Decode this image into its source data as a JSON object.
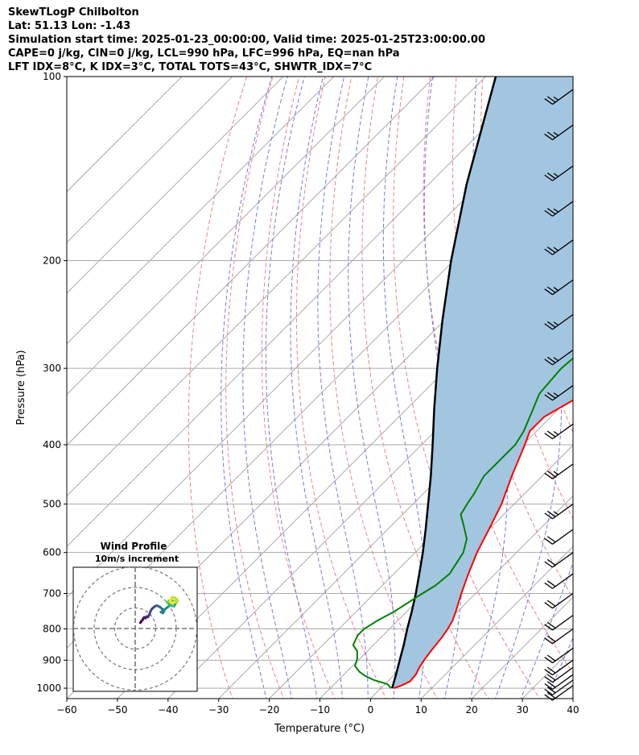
{
  "header": {
    "title": "SkewTLogP Chilbolton",
    "location": "Lat: 51.13   Lon: -1.43",
    "times": "Simulation start time: 2025-01-23_00:00:00, Valid time: 2025-01-25T23:00:00.00",
    "indices1": "CAPE=0 j/kg, CIN=0 j/kg, LCL=990 hPa, LFC=996 hPa, EQ=nan hPa",
    "indices2": "LFT IDX=8°C, K IDX=3°C, TOTAL TOTS=43°C, SHWTR_IDX=7°C"
  },
  "chart_data": {
    "type": "skewt",
    "xlabel": "Temperature (°C)",
    "ylabel": "Pressure (hPa)",
    "xlim": [
      -60,
      40
    ],
    "ylim": [
      1040,
      100
    ],
    "y_scale": "log",
    "x_ticks": [
      "−60",
      "−50",
      "−40",
      "−30",
      "−20",
      "−10",
      "0",
      "10",
      "20",
      "30",
      "40"
    ],
    "y_ticks": [
      "100",
      "200",
      "300",
      "400",
      "500",
      "600",
      "700",
      "800",
      "900",
      "1000"
    ],
    "grid": true,
    "colors": {
      "temperature": "#ff0000",
      "dewpoint": "#008000",
      "parcel": "#000000",
      "cape_fill": "#a3c6e0",
      "dry_adiabats": "#f08080",
      "moist_adiabats": "#6b7bef",
      "isotherms": "#aaaaaa"
    },
    "temperature": [
      {
        "p": 1000,
        "t": 2.5
      },
      {
        "p": 990,
        "t": 3.5
      },
      {
        "p": 975,
        "t": 4.4
      },
      {
        "p": 950,
        "t": 4.2
      },
      {
        "p": 925,
        "t": 3.5
      },
      {
        "p": 900,
        "t": 3.0
      },
      {
        "p": 875,
        "t": 2.6
      },
      {
        "p": 850,
        "t": 2.3
      },
      {
        "p": 825,
        "t": 2.0
      },
      {
        "p": 800,
        "t": 1.5
      },
      {
        "p": 775,
        "t": 0.8
      },
      {
        "p": 750,
        "t": -0.3
      },
      {
        "p": 700,
        "t": -2.8
      },
      {
        "p": 650,
        "t": -5.3
      },
      {
        "p": 600,
        "t": -7.8
      },
      {
        "p": 550,
        "t": -10.0
      },
      {
        "p": 500,
        "t": -12.5
      },
      {
        "p": 450,
        "t": -16.0
      },
      {
        "p": 400,
        "t": -19.6
      },
      {
        "p": 380,
        "t": -21.3
      },
      {
        "p": 360,
        "t": -21.3
      },
      {
        "p": 335,
        "t": -18.5
      },
      {
        "p": 300,
        "t": -17.7
      },
      {
        "p": 285,
        "t": -16.0
      },
      {
        "p": 265,
        "t": -12.5
      },
      {
        "p": 250,
        "t": -9.5
      },
      {
        "p": 235,
        "t": -6.5
      },
      {
        "p": 220,
        "t": -5.0
      },
      {
        "p": 200,
        "t": -2.8
      },
      {
        "p": 185,
        "t": 0.0
      },
      {
        "p": 170,
        "t": 2.5
      },
      {
        "p": 160,
        "t": 4.0
      },
      {
        "p": 140,
        "t": 7.0
      },
      {
        "p": 125,
        "t": 9.5
      },
      {
        "p": 115,
        "t": 12.0
      },
      {
        "p": 100,
        "t": 17.5
      }
    ],
    "dewpoint": [
      {
        "p": 1000,
        "t": 2.0
      },
      {
        "p": 985,
        "t": 0.5
      },
      {
        "p": 970,
        "t": -3.0
      },
      {
        "p": 955,
        "t": -5.5
      },
      {
        "p": 940,
        "t": -7.5
      },
      {
        "p": 920,
        "t": -9.5
      },
      {
        "p": 895,
        "t": -10.5
      },
      {
        "p": 870,
        "t": -12.0
      },
      {
        "p": 850,
        "t": -14.0
      },
      {
        "p": 820,
        "t": -15.0
      },
      {
        "p": 800,
        "t": -15.0
      },
      {
        "p": 775,
        "t": -14.0
      },
      {
        "p": 750,
        "t": -12.5
      },
      {
        "p": 700,
        "t": -10.5
      },
      {
        "p": 680,
        "t": -9.5
      },
      {
        "p": 650,
        "t": -9.0
      },
      {
        "p": 600,
        "t": -10.5
      },
      {
        "p": 570,
        "t": -12.5
      },
      {
        "p": 540,
        "t": -16.0
      },
      {
        "p": 520,
        "t": -18.5
      },
      {
        "p": 495,
        "t": -19.5
      },
      {
        "p": 480,
        "t": -20.0
      },
      {
        "p": 450,
        "t": -21.5
      },
      {
        "p": 400,
        "t": -21.5
      },
      {
        "p": 380,
        "t": -22.5
      },
      {
        "p": 350,
        "t": -25.0
      },
      {
        "p": 330,
        "t": -26.8
      },
      {
        "p": 300,
        "t": -27.5
      },
      {
        "p": 285,
        "t": -27.0
      },
      {
        "p": 260,
        "t": -27.5
      },
      {
        "p": 240,
        "t": -28.5
      },
      {
        "p": 220,
        "t": -29.5
      },
      {
        "p": 200,
        "t": -30.5
      },
      {
        "p": 185,
        "t": -30.0
      },
      {
        "p": 170,
        "t": -28.5
      },
      {
        "p": 160,
        "t": -27.0
      },
      {
        "p": 140,
        "t": -23.5
      },
      {
        "p": 120,
        "t": -19.0
      },
      {
        "p": 110,
        "t": -16.0
      },
      {
        "p": 100,
        "t": -13.0
      }
    ],
    "parcel": [
      {
        "p": 1000,
        "t": 2.2
      },
      {
        "p": 950,
        "t": 0.3
      },
      {
        "p": 900,
        "t": -1.8
      },
      {
        "p": 850,
        "t": -4.0
      },
      {
        "p": 800,
        "t": -6.5
      },
      {
        "p": 750,
        "t": -9.0
      },
      {
        "p": 700,
        "t": -11.8
      },
      {
        "p": 650,
        "t": -15.0
      },
      {
        "p": 600,
        "t": -18.5
      },
      {
        "p": 550,
        "t": -22.5
      },
      {
        "p": 500,
        "t": -27.0
      },
      {
        "p": 450,
        "t": -32.0
      },
      {
        "p": 400,
        "t": -37.8
      },
      {
        "p": 350,
        "t": -44.5
      },
      {
        "p": 300,
        "t": -52.0
      },
      {
        "p": 250,
        "t": -60.5
      },
      {
        "p": 200,
        "t": -70.5
      },
      {
        "p": 150,
        "t": -82.5
      },
      {
        "p": 100,
        "t": -98.0
      }
    ],
    "wind_barbs": [
      {
        "p": 990,
        "speed_kt": 20,
        "dir_deg": 240
      },
      {
        "p": 970,
        "speed_kt": 20,
        "dir_deg": 240
      },
      {
        "p": 950,
        "speed_kt": 20,
        "dir_deg": 240
      },
      {
        "p": 925,
        "speed_kt": 20,
        "dir_deg": 240
      },
      {
        "p": 900,
        "speed_kt": 20,
        "dir_deg": 240
      },
      {
        "p": 860,
        "speed_kt": 20,
        "dir_deg": 240
      },
      {
        "p": 800,
        "speed_kt": 20,
        "dir_deg": 240
      },
      {
        "p": 760,
        "speed_kt": 20,
        "dir_deg": 240
      },
      {
        "p": 700,
        "speed_kt": 20,
        "dir_deg": 240
      },
      {
        "p": 650,
        "speed_kt": 20,
        "dir_deg": 240
      },
      {
        "p": 600,
        "speed_kt": 20,
        "dir_deg": 240
      },
      {
        "p": 550,
        "speed_kt": 20,
        "dir_deg": 240
      },
      {
        "p": 500,
        "speed_kt": 25,
        "dir_deg": 240
      },
      {
        "p": 430,
        "speed_kt": 25,
        "dir_deg": 240
      },
      {
        "p": 370,
        "speed_kt": 25,
        "dir_deg": 240
      },
      {
        "p": 320,
        "speed_kt": 25,
        "dir_deg": 240
      },
      {
        "p": 280,
        "speed_kt": 25,
        "dir_deg": 240
      },
      {
        "p": 245,
        "speed_kt": 25,
        "dir_deg": 240
      },
      {
        "p": 215,
        "speed_kt": 25,
        "dir_deg": 240
      },
      {
        "p": 185,
        "speed_kt": 25,
        "dir_deg": 240
      },
      {
        "p": 160,
        "speed_kt": 25,
        "dir_deg": 240
      },
      {
        "p": 140,
        "speed_kt": 25,
        "dir_deg": 240
      },
      {
        "p": 120,
        "speed_kt": 25,
        "dir_deg": 240
      },
      {
        "p": 105,
        "speed_kt": 25,
        "dir_deg": 240
      }
    ],
    "hodograph": {
      "title": "Wind Profile",
      "subtitle": "10m/s increment",
      "rings_ms": [
        10,
        20,
        30
      ],
      "points": [
        {
          "u": 2.5,
          "v": 2.8
        },
        {
          "u": 3.0,
          "v": 3.5
        },
        {
          "u": 3.6,
          "v": 4.2
        },
        {
          "u": 4.0,
          "v": 5.0
        },
        {
          "u": 4.4,
          "v": 5.5
        },
        {
          "u": 5.0,
          "v": 5.0
        },
        {
          "u": 5.6,
          "v": 5.8
        },
        {
          "u": 6.2,
          "v": 5.6
        },
        {
          "u": 7.0,
          "v": 7.0
        },
        {
          "u": 7.5,
          "v": 8.5
        },
        {
          "u": 8.2,
          "v": 9.6
        },
        {
          "u": 9.2,
          "v": 10.5
        },
        {
          "u": 10.5,
          "v": 11.2
        },
        {
          "u": 12.0,
          "v": 10.5
        },
        {
          "u": 13.2,
          "v": 9.5
        },
        {
          "u": 14.0,
          "v": 8.3
        },
        {
          "u": 13.5,
          "v": 7.5
        },
        {
          "u": 12.5,
          "v": 8.0
        },
        {
          "u": 14.0,
          "v": 9.0
        },
        {
          "u": 16.0,
          "v": 10.5
        },
        {
          "u": 17.5,
          "v": 12.0
        },
        {
          "u": 18.8,
          "v": 13.0
        },
        {
          "u": 19.5,
          "v": 12.0
        },
        {
          "u": 19.0,
          "v": 10.8
        },
        {
          "u": 18.0,
          "v": 11.0
        },
        {
          "u": 16.8,
          "v": 11.8
        },
        {
          "u": 15.6,
          "v": 12.6
        },
        {
          "u": 16.5,
          "v": 13.6
        },
        {
          "u": 17.8,
          "v": 13.8
        },
        {
          "u": 19.0,
          "v": 13.3
        },
        {
          "u": 20.2,
          "v": 12.5
        },
        {
          "u": 20.6,
          "v": 13.8
        },
        {
          "u": 19.6,
          "v": 14.8
        },
        {
          "u": 18.4,
          "v": 15.2
        },
        {
          "u": 17.3,
          "v": 14.8
        },
        {
          "u": 17.0,
          "v": 13.0
        },
        {
          "u": 18.0,
          "v": 12.3
        },
        {
          "u": 19.2,
          "v": 12.8
        }
      ]
    }
  }
}
